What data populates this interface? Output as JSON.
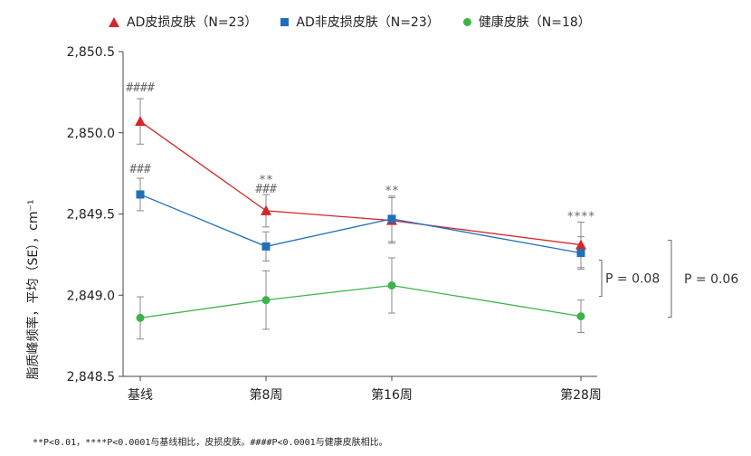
{
  "chart_data": {
    "type": "line",
    "title": "",
    "xlabel": "",
    "ylabel": "脂质峰频率，平均（SE），cm⁻¹",
    "categories": [
      "基线",
      "第8周",
      "第16周",
      "第28周"
    ],
    "ylim": [
      2848.5,
      2850.5
    ],
    "yticks": [
      "2,848.5",
      "2,849.0",
      "2,849.5",
      "2,850.0",
      "2,850.5"
    ],
    "ytick_values": [
      2848.5,
      2849.0,
      2849.5,
      2850.0,
      2850.5
    ],
    "series": [
      {
        "name": "AD皮损皮肤（N=23）",
        "marker": "triangle",
        "color": "#d62628",
        "values": [
          2850.07,
          2849.52,
          2849.46,
          2849.31
        ],
        "err": [
          0.14,
          0.1,
          0.14,
          0.14
        ]
      },
      {
        "name": "AD非皮损皮肤（N=23）",
        "marker": "square",
        "color": "#1f6fb9",
        "values": [
          2849.62,
          2849.3,
          2849.47,
          2849.26
        ],
        "err": [
          0.1,
          0.09,
          0.14,
          0.1
        ]
      },
      {
        "name": "健康皮肤（N=18）",
        "marker": "circle",
        "color": "#3cb44b",
        "values": [
          2848.86,
          2848.97,
          2849.06,
          2848.87
        ],
        "err": [
          0.13,
          0.18,
          0.17,
          0.1
        ]
      }
    ],
    "annotations": [
      {
        "text": "####",
        "category": 0,
        "series": 0
      },
      {
        "text": "###",
        "category": 0,
        "series": 1
      },
      {
        "text": "**",
        "category": 1,
        "series": 0
      },
      {
        "text": "###",
        "category": 1,
        "series": 0
      },
      {
        "text": "**",
        "category": 2,
        "series": 1
      },
      {
        "text": "****",
        "category": 3,
        "series": 0
      }
    ],
    "brackets": [
      {
        "label": "P = 0.08",
        "from_series": 1,
        "to_series": 2,
        "category": 3
      },
      {
        "label": "P = 0.06",
        "from_series": 0,
        "to_series": 2,
        "category": 3
      }
    ],
    "footnote": "**P<0.01，****P<0.0001与基线相比，皮损皮肤。####P<0.0001与健康皮肤相比。"
  }
}
